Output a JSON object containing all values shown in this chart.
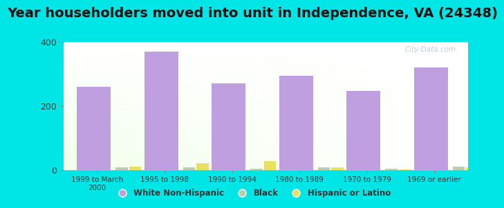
{
  "title": "Year householders moved into unit in Independence, VA (24348)",
  "categories": [
    "1999 to March\n2000",
    "1995 to 1998",
    "1990 to 1994",
    "1980 to 1989",
    "1970 to 1979",
    "1969 or earlier"
  ],
  "white_values": [
    260,
    370,
    270,
    295,
    248,
    320
  ],
  "black_values": [
    8,
    8,
    5,
    8,
    4,
    10
  ],
  "hispanic_values": [
    10,
    22,
    28,
    8,
    3,
    8
  ],
  "white_color": "#bf9fdf",
  "black_color": "#b8cfb0",
  "hispanic_color": "#e8e060",
  "background_color": "#00e5e5",
  "ylim": [
    0,
    400
  ],
  "yticks": [
    0,
    200,
    400
  ],
  "bar_width": 0.5,
  "small_bar_width": 0.18,
  "title_fontsize": 14,
  "watermark": "City-Data.com"
}
